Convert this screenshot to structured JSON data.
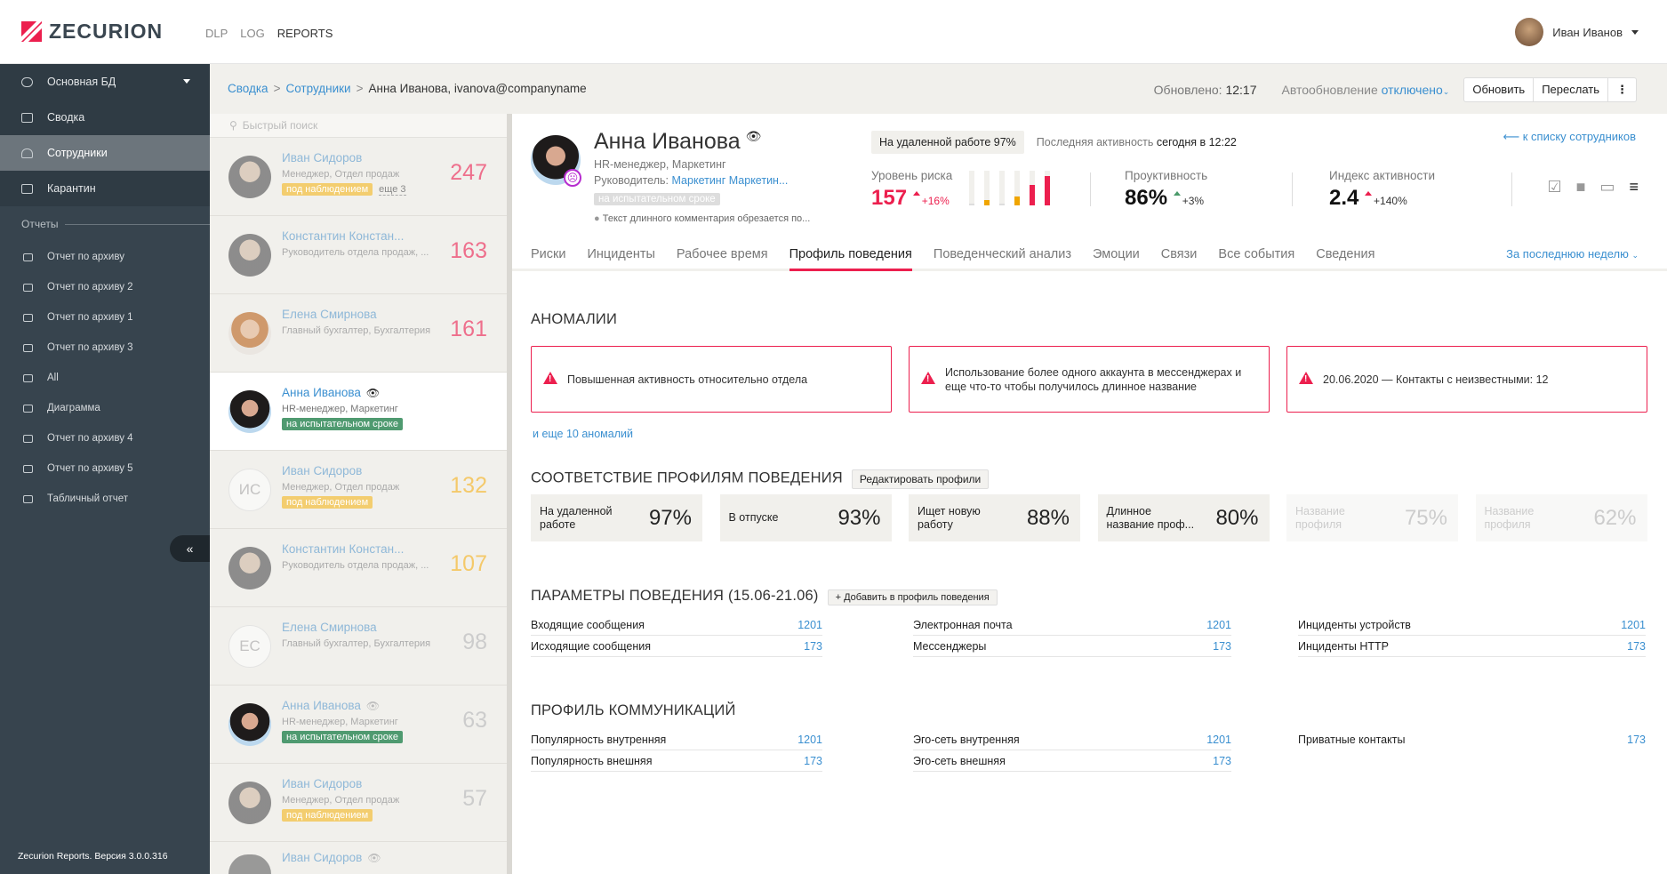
{
  "header": {
    "logo": "ZECURION",
    "nav": [
      "DLP",
      "LOG",
      "REPORTS"
    ],
    "active_nav": "REPORTS",
    "user": "Иван Иванов"
  },
  "sidebar": {
    "db": "Основная БД",
    "items": [
      {
        "label": "Сводка",
        "icon": "laptop-icon"
      },
      {
        "label": "Сотрудники",
        "icon": "user-icon",
        "active": true
      },
      {
        "label": "Карантин",
        "icon": "inbox-icon"
      }
    ],
    "section": "Отчеты",
    "reports": [
      {
        "label": "Отчет по архиву",
        "icon": "inbox-icon"
      },
      {
        "label": "Отчет по архиву 2",
        "icon": "inbox-icon"
      },
      {
        "label": "Отчет по архиву 1",
        "icon": "inbox-icon"
      },
      {
        "label": "Отчет по архиву 3",
        "icon": "inbox-icon"
      },
      {
        "label": "All",
        "icon": "inbox-icon"
      },
      {
        "label": "Диаграмма",
        "icon": "bar-chart-icon"
      },
      {
        "label": "Отчет по архиву 4",
        "icon": "inbox-icon"
      },
      {
        "label": "Отчет по архиву 5",
        "icon": "inbox-icon"
      },
      {
        "label": "Табличный отчет",
        "icon": "table-icon"
      }
    ],
    "collapse": "«",
    "version": "Zecurion Reports. Версия 3.0.0.316"
  },
  "breadcrumb": {
    "items": [
      "Сводка",
      "Сотрудники"
    ],
    "current": "Анна Иванова, ivanova@companyname"
  },
  "toolbar": {
    "updated_label": "Обновлено:",
    "updated_time": "12:17",
    "auto_label": "Автообновление",
    "auto_value": "отключено",
    "refresh": "Обновить",
    "forward": "Переслать",
    "more": "⋮"
  },
  "employees": {
    "search_placeholder": "Быстрый поиск",
    "list": [
      {
        "name": "Иван Сидоров",
        "position": "Менеджер, Отдел продаж",
        "tag": "под наблюдением",
        "tag_type": "y",
        "more": "еще 3",
        "score": "247",
        "score_color": "#ee6f8c"
      },
      {
        "name": "Константин Констан...",
        "position": "Руководитель отдела продаж, ...",
        "score": "163",
        "score_color": "#ee6f8c"
      },
      {
        "name": "Елена Смирнова",
        "position": "Главный бухгалтер, Бухгалтерия",
        "score": "161",
        "score_color": "#ee6f8c",
        "avatar": "f"
      },
      {
        "name": "Анна Иванова",
        "position": "HR-менеджер, Маркетинг",
        "tag": "на испытательном сроке",
        "tag_type": "g",
        "selected": true,
        "watched": true,
        "avatar": "a"
      },
      {
        "name": "Иван Сидоров",
        "position": "Менеджер, Отдел продаж",
        "tag": "под наблюдением",
        "tag_type": "y",
        "score": "132",
        "score_color": "#f4c96a",
        "initials": "ИС"
      },
      {
        "name": "Константин Констан...",
        "position": "Руководитель отдела продаж, ...",
        "score": "107",
        "score_color": "#f4c96a"
      },
      {
        "name": "Елена Смирнова",
        "position": "Главный бухгалтер, Бухгалтерия",
        "score": "98",
        "score_color": "#cccccc",
        "initials": "ЕС"
      },
      {
        "name": "Анна Иванова",
        "position": "HR-менеджер, Маркетинг",
        "tag": "на испытательном сроке",
        "tag_type": "g",
        "score": "63",
        "score_color": "#cccccc",
        "watched": true,
        "avatar": "a"
      },
      {
        "name": "Иван Сидоров",
        "position": "Менеджер, Отдел продаж",
        "tag": "под наблюдением",
        "tag_type": "y",
        "score": "57",
        "score_color": "#cccccc"
      },
      {
        "name": "Иван Сидоров",
        "position": "",
        "score": "",
        "watched": true
      }
    ]
  },
  "profile": {
    "name": "Анна Иванова",
    "position": "HR-менеджер, Маркетинг",
    "boss_label": "Руководитель:",
    "boss": "Маркетинг Маркетин...",
    "tag": "на испытательном сроке",
    "comment": "Текст длинного комментария обрезается по...",
    "badge": "На удаленной работе 97%",
    "last_activity_label": "Последняя активность",
    "last_activity": "сегодня в 12:22",
    "back": "к списку сотрудников",
    "risk": {
      "label": "Уровень риска",
      "value": "157",
      "delta": "+16%",
      "bars": [
        {
          "level": 0.05,
          "color": "#dddddd"
        },
        {
          "level": 0.15,
          "color": "#f0a500"
        },
        {
          "level": 0.05,
          "color": "#dddddd"
        },
        {
          "level": 0.25,
          "color": "#f0a500"
        },
        {
          "level": 0.6,
          "color": "#ec1f4e"
        },
        {
          "level": 0.85,
          "color": "#ec1f4e"
        }
      ]
    },
    "productivity": {
      "label": "Проуктивность",
      "value": "86%",
      "delta": "+3%"
    },
    "activity": {
      "label": "Индекс активности",
      "value": "2.4",
      "delta": "+140%"
    },
    "icons": [
      "checkbox-icon",
      "video-camera-icon",
      "monitor-icon",
      "playlist-add-icon"
    ]
  },
  "tabs": {
    "items": [
      "Риски",
      "Инциденты",
      "Рабочее время",
      "Профиль поведения",
      "Поведенческий анализ",
      "Эмоции",
      "Связи",
      "Все события",
      "Сведения"
    ],
    "active": "Профиль поведения",
    "period": "За последнюю неделю"
  },
  "anomalies": {
    "title": "АНОМАЛИИ",
    "items": [
      "Повышенная активность относительно отдела",
      "Использование более одного аккаунта в мессенджерах и еще что-то чтобы получилось длинное название",
      "20.06.2020 — Контакты с неизвестными: 12"
    ],
    "more": "и еще 10 аномалий"
  },
  "profiles": {
    "title": "СООТВЕТСТВИЕ ПРОФИЛЯМ ПОВЕДЕНИЯ",
    "edit": "Редактировать профили",
    "cards": [
      {
        "label": "На удаленной работе",
        "value": "97%"
      },
      {
        "label": "В отпуске",
        "value": "93%"
      },
      {
        "label": "Ищет новую работу",
        "value": "88%"
      },
      {
        "label": "Длинное название проф...",
        "value": "80%"
      },
      {
        "label": "Название профиля",
        "value": "75%",
        "dim": true
      },
      {
        "label": "Название профиля",
        "value": "62%",
        "dim": true
      }
    ]
  },
  "params": {
    "title": "ПАРАМЕТРЫ ПОВЕДЕНИЯ (15.06-21.06)",
    "add": "+ Добавить в профиль поведения",
    "cols": [
      [
        {
          "label": "Входящие сообщения",
          "value": "1201"
        },
        {
          "label": "Исходящие сообщения",
          "value": "173"
        }
      ],
      [
        {
          "label": "Электронная почта",
          "value": "1201"
        },
        {
          "label": "Мессенджеры",
          "value": "173"
        }
      ],
      [
        {
          "label": "Инциденты устройств",
          "value": "1201"
        },
        {
          "label": "Инциденты HTTP",
          "value": "173"
        }
      ]
    ]
  },
  "comm": {
    "title": "ПРОФИЛЬ КОММУНИКАЦИЙ",
    "cols": [
      [
        {
          "label": "Популярность внутренняя",
          "value": "1201"
        },
        {
          "label": "Популярность внешняя",
          "value": "173"
        }
      ],
      [
        {
          "label": "Эго-сеть внутренняя",
          "value": "1201"
        },
        {
          "label": "Эго-сеть внешняя",
          "value": "173"
        }
      ],
      [
        {
          "label": "Приватные контакты",
          "value": "173"
        }
      ]
    ]
  }
}
